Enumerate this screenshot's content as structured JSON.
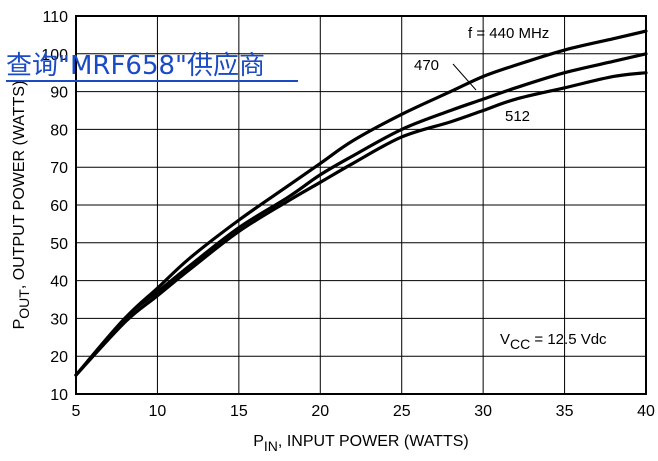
{
  "chart_data": {
    "type": "line",
    "xlabel_main": "P",
    "xlabel_sub": "IN",
    "xlabel_rest": ", INPUT POWER (WATTS)",
    "ylabel_main": "P",
    "ylabel_sub": "OUT",
    "ylabel_rest": ", OUTPUT POWER (WATTS)",
    "xlim": [
      5,
      40
    ],
    "ylim": [
      10,
      110
    ],
    "x_ticks": [
      "5",
      "10",
      "15",
      "20",
      "25",
      "30",
      "35",
      "40"
    ],
    "y_ticks": [
      "10",
      "20",
      "30",
      "40",
      "50",
      "60",
      "70",
      "80",
      "90",
      "100",
      "110"
    ],
    "grid": true,
    "series": [
      {
        "name": "f = 440 MHz",
        "x": [
          5,
          8,
          10,
          12,
          15,
          18,
          20,
          22,
          25,
          28,
          30,
          32,
          35,
          38,
          40
        ],
        "y": [
          15,
          30,
          38,
          46,
          56,
          65,
          71,
          77,
          84,
          90,
          94,
          97,
          101,
          104,
          106
        ]
      },
      {
        "name": "470",
        "x": [
          5,
          8,
          10,
          12,
          15,
          18,
          20,
          22,
          25,
          28,
          30,
          32,
          35,
          38,
          40
        ],
        "y": [
          15,
          30,
          37,
          44,
          54,
          62,
          68,
          73,
          80,
          85,
          88,
          91,
          95,
          98,
          100
        ]
      },
      {
        "name": "512",
        "x": [
          5,
          8,
          10,
          12,
          15,
          18,
          20,
          22,
          25,
          28,
          30,
          32,
          35,
          38,
          40
        ],
        "y": [
          15,
          29,
          36,
          43,
          53,
          61,
          66,
          71,
          78,
          82,
          85,
          88,
          91,
          94,
          95
        ]
      }
    ],
    "annotation_vcc_main": "V",
    "annotation_vcc_sub": "CC",
    "annotation_vcc_rest": " = 12.5 Vdc"
  },
  "overlay_link": "查询\"MRF658\"供应商"
}
